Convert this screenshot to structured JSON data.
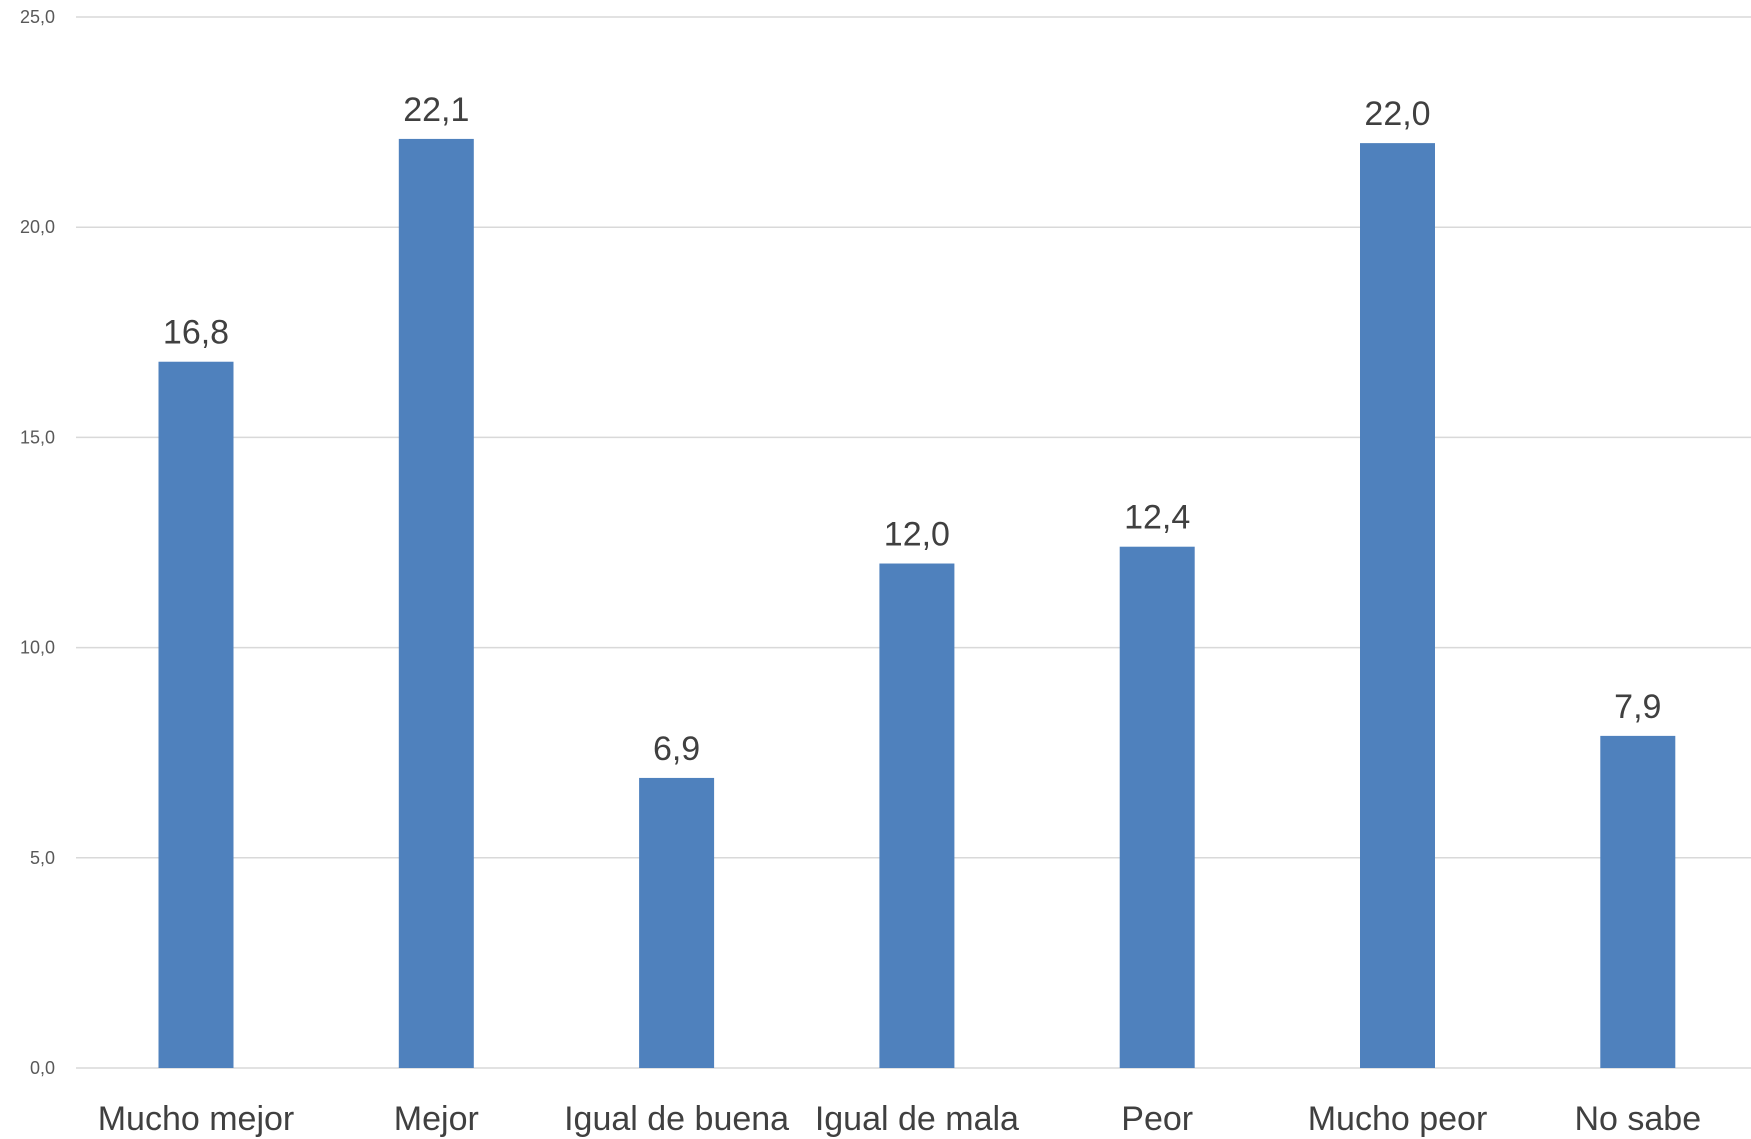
{
  "chart_data": {
    "type": "bar",
    "title": "",
    "xlabel": "",
    "ylabel": "",
    "categories": [
      "Mucho mejor",
      "Mejor",
      "Igual de buena",
      "Igual de mala",
      "Peor",
      "Mucho peor",
      "No sabe"
    ],
    "values": [
      16.8,
      22.1,
      6.9,
      12.0,
      12.4,
      22.0,
      7.9
    ],
    "value_labels": [
      "16,8",
      "22,1",
      "6,9",
      "12,0",
      "12,4",
      "22,0",
      "7,9"
    ],
    "ylim": [
      0,
      25
    ],
    "yticks": [
      0,
      5,
      10,
      15,
      20,
      25
    ],
    "ytick_labels": [
      "0,0",
      "5,0",
      "10,0",
      "15,0",
      "20,0",
      "25,0"
    ],
    "grid": true,
    "legend": "none",
    "colors": {
      "bar": "#4f81bd",
      "grid": "#d9d9d9",
      "text": "#404040"
    }
  }
}
